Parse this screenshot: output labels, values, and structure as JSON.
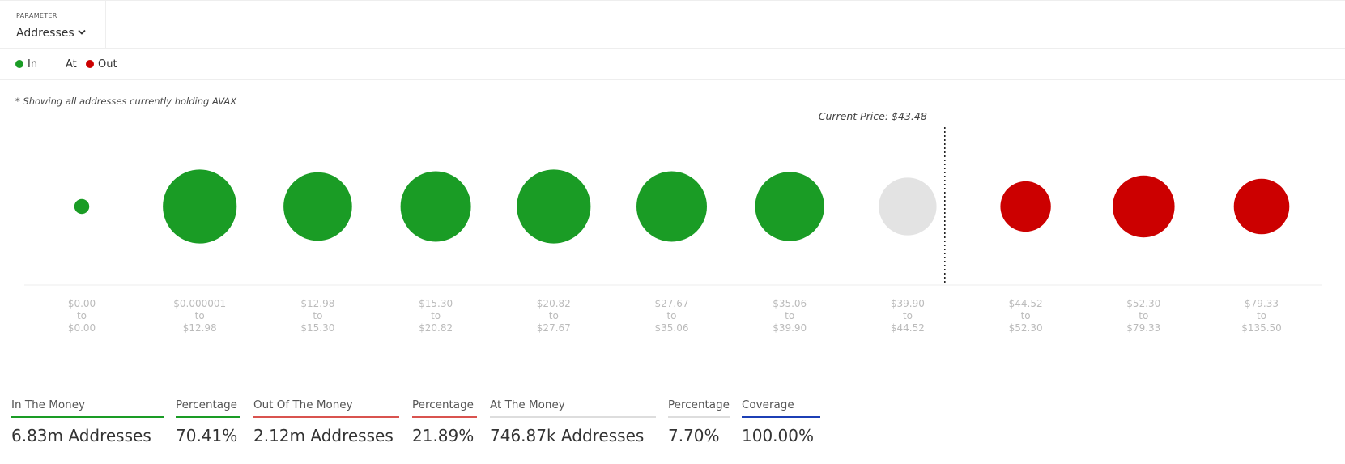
{
  "parameter": {
    "label": "PARAMETER",
    "value": "Addresses"
  },
  "note": "* Showing all addresses currently holding AVAX",
  "chart_data": {
    "type": "bubble",
    "legend": [
      {
        "name": "In",
        "color": "#1a9c25"
      },
      {
        "name": "At",
        "color": "#e3e3e3"
      },
      {
        "name": "Out",
        "color": "#cc0000"
      }
    ],
    "categories": [
      {
        "low": "$0.00",
        "high": "$0.00"
      },
      {
        "low": "$0.000001",
        "high": "$12.98"
      },
      {
        "low": "$12.98",
        "high": "$15.30"
      },
      {
        "low": "$15.30",
        "high": "$20.82"
      },
      {
        "low": "$20.82",
        "high": "$27.67"
      },
      {
        "low": "$27.67",
        "high": "$35.06"
      },
      {
        "low": "$35.06",
        "high": "$39.90"
      },
      {
        "low": "$39.90",
        "high": "$44.52"
      },
      {
        "low": "$44.52",
        "high": "$52.30"
      },
      {
        "low": "$52.30",
        "high": "$79.33"
      },
      {
        "low": "$79.33",
        "high": "$135.50"
      }
    ],
    "range_word": "to",
    "values": [
      50000,
      1220000,
      1050000,
      1110000,
      1220000,
      1110000,
      1070000,
      746870,
      570000,
      860000,
      690000
    ],
    "status": [
      "In",
      "In",
      "In",
      "In",
      "In",
      "In",
      "In",
      "At",
      "Out",
      "Out",
      "Out"
    ],
    "annotation": {
      "text": "Current Price: $43.48",
      "value": 43.48
    }
  },
  "summary": [
    {
      "label": "In The Money",
      "value": "6.83m Addresses",
      "color": "#1a9c25"
    },
    {
      "label": "Percentage",
      "value": "70.41%",
      "color": "#1a9c25"
    },
    {
      "label": "Out Of The Money",
      "value": "2.12m Addresses",
      "color": "#d9534f"
    },
    {
      "label": "Percentage",
      "value": "21.89%",
      "color": "#d9534f"
    },
    {
      "label": "At The Money",
      "value": "746.87k Addresses",
      "color": "#dddddd"
    },
    {
      "label": "Percentage",
      "value": "7.70%",
      "color": "#dddddd"
    },
    {
      "label": "Coverage",
      "value": "100.00%",
      "color": "#1c3fb5"
    }
  ]
}
